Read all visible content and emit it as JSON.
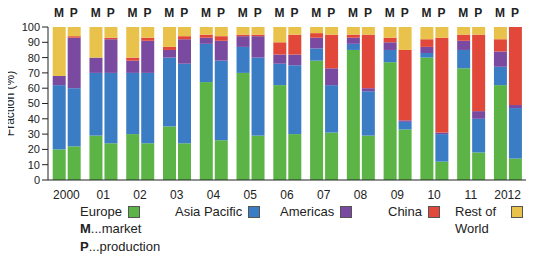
{
  "chart_data": {
    "type": "bar",
    "stacked": true,
    "grid": false,
    "legend": "bottom",
    "y_label": "Fraction (%)",
    "categories": [
      "2000",
      null,
      "01",
      null,
      "02",
      null,
      "03",
      null,
      "04",
      null,
      "05",
      null,
      "06",
      null,
      "07",
      null,
      "08",
      null,
      "09",
      null,
      "10",
      null,
      "11",
      null,
      "2012",
      null
    ],
    "bar_labels": [
      "M",
      "P",
      "M",
      "P",
      "M",
      "P",
      "M",
      "P",
      "M",
      "P",
      "M",
      "P",
      "M",
      "P",
      "M",
      "P",
      "M",
      "P",
      "M",
      "P",
      "M",
      "P",
      "M",
      "P",
      "M",
      "P"
    ],
    "annotations": [
      "M...market",
      "P...production"
    ],
    "ylim": [
      0,
      100
    ],
    "yticks": [
      0,
      10,
      20,
      30,
      40,
      50,
      60,
      70,
      80,
      90,
      100
    ],
    "series": [
      {
        "name": "Europe",
        "color": "#5cb346",
        "values": [
          20,
          22,
          29,
          24,
          30,
          24,
          35,
          24,
          64,
          26,
          70,
          29,
          62,
          30,
          78,
          31,
          85,
          29,
          77,
          33,
          80,
          12,
          73,
          18,
          62,
          14
        ]
      },
      {
        "name": "Asia Pacific",
        "color": "#3b7dc4",
        "values": [
          42,
          38,
          41,
          46,
          40,
          46,
          45,
          52,
          25,
          52,
          17,
          51,
          14,
          45,
          8,
          31,
          4,
          29,
          8,
          5,
          3,
          18,
          12,
          22,
          12,
          33
        ]
      },
      {
        "name": "Americas",
        "color": "#7a4aa0",
        "values": [
          6,
          33,
          10,
          22,
          8,
          21,
          5,
          16,
          4,
          13,
          7,
          14,
          6,
          7,
          7,
          11,
          4,
          2,
          5,
          1,
          4,
          1,
          6,
          5,
          10,
          2
        ]
      },
      {
        "name": "China",
        "color": "#e2483a",
        "values": [
          0,
          1,
          0,
          1,
          2,
          2,
          2,
          2,
          2,
          3,
          1,
          1,
          8,
          13,
          3,
          22,
          2,
          35,
          3,
          46,
          5,
          62,
          4,
          50,
          8,
          51
        ]
      },
      {
        "name": "Rest of World",
        "color": "#e8c24a",
        "values": [
          32,
          6,
          20,
          7,
          20,
          7,
          13,
          6,
          5,
          6,
          5,
          5,
          10,
          5,
          4,
          5,
          5,
          5,
          7,
          15,
          8,
          7,
          5,
          5,
          8,
          0
        ]
      }
    ]
  }
}
